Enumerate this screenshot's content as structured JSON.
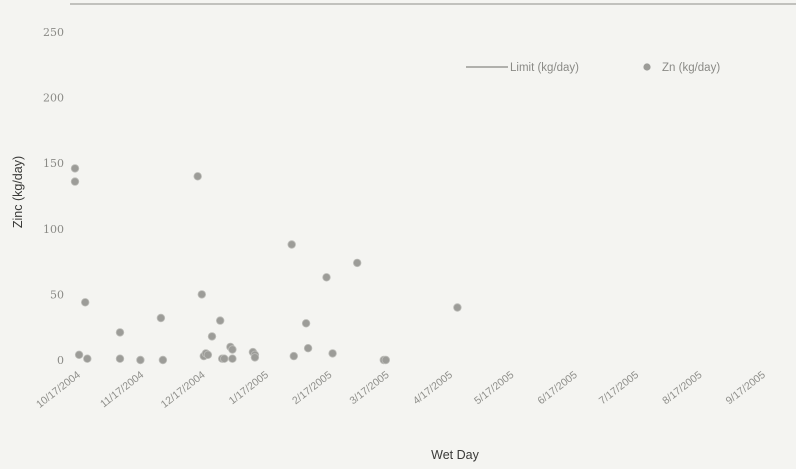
{
  "chart_data": {
    "type": "scatter",
    "title": "",
    "xlabel": "Wet Day",
    "ylabel": "Zinc (kg/day)",
    "ylim": [
      0,
      250
    ],
    "yticks": [
      0,
      50,
      100,
      150,
      200,
      250
    ],
    "xlim": [
      "2004-10-17",
      "2005-09-17"
    ],
    "xticks": [
      "10/17/2004",
      "11/17/2004",
      "12/17/2004",
      "1/17/2005",
      "2/17/2005",
      "3/17/2005",
      "4/17/2005",
      "5/17/2005",
      "6/17/2005",
      "7/17/2005",
      "8/17/2005",
      "9/17/2005"
    ],
    "grid": false,
    "legend_position": "top-right",
    "series": [
      {
        "name": "Limit (kg/day)",
        "kind": "line",
        "color": "#9a9a96",
        "x": [],
        "y": []
      },
      {
        "name": "Zn (kg/day)",
        "kind": "scatter",
        "color": "#9c9c98",
        "x": [
          "2004-10-17",
          "2004-10-17",
          "2004-10-19",
          "2004-10-22",
          "2004-10-23",
          "2004-11-08",
          "2004-11-08",
          "2004-11-18",
          "2004-11-28",
          "2004-11-29",
          "2004-12-16",
          "2004-12-18",
          "2004-12-19",
          "2004-12-20",
          "2004-12-21",
          "2004-12-23",
          "2004-12-27",
          "2004-12-28",
          "2004-12-29",
          "2005-01-01",
          "2005-01-02",
          "2005-01-02",
          "2005-01-12",
          "2005-01-13",
          "2005-01-13",
          "2005-01-31",
          "2005-02-01",
          "2005-02-07",
          "2005-02-08",
          "2005-02-17",
          "2005-02-20",
          "2005-03-04",
          "2005-03-17",
          "2005-03-18",
          "2005-04-22"
        ],
        "y": [
          146,
          136,
          4,
          44,
          1,
          21,
          1,
          0,
          32,
          0,
          140,
          50,
          3,
          5,
          4,
          18,
          30,
          1,
          1,
          10,
          8,
          1,
          6,
          4,
          2,
          88,
          3,
          28,
          9,
          63,
          5,
          74,
          0,
          0,
          40
        ]
      }
    ]
  }
}
